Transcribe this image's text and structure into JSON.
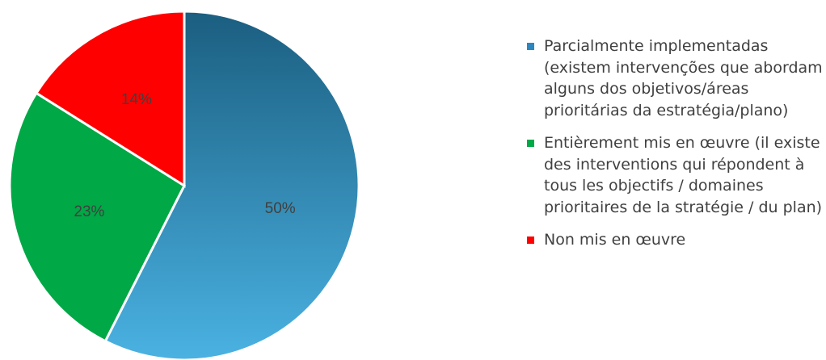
{
  "chart_data": {
    "type": "pie",
    "title": "",
    "slices": [
      {
        "label": "Parcialmente implementadas (existem intervenções que abordam alguns dos objetivos/áreas prioritárias da estratégia/plano)",
        "value": 50,
        "display": "50%",
        "color": "#2e86c1",
        "gradient": [
          "#1b5e80",
          "#4ab2e2"
        ]
      },
      {
        "label": "Entièrement mis en œuvre (il existe des interventions qui répondent à tous les objectifs / domaines prioritaires de la stratégie / du plan)",
        "value": 23,
        "display": "23%",
        "color": "#00a846"
      },
      {
        "label": "Non mis en œuvre",
        "value": 14,
        "display": "14%",
        "color": "#ff0000"
      }
    ],
    "legend_position": "right"
  }
}
